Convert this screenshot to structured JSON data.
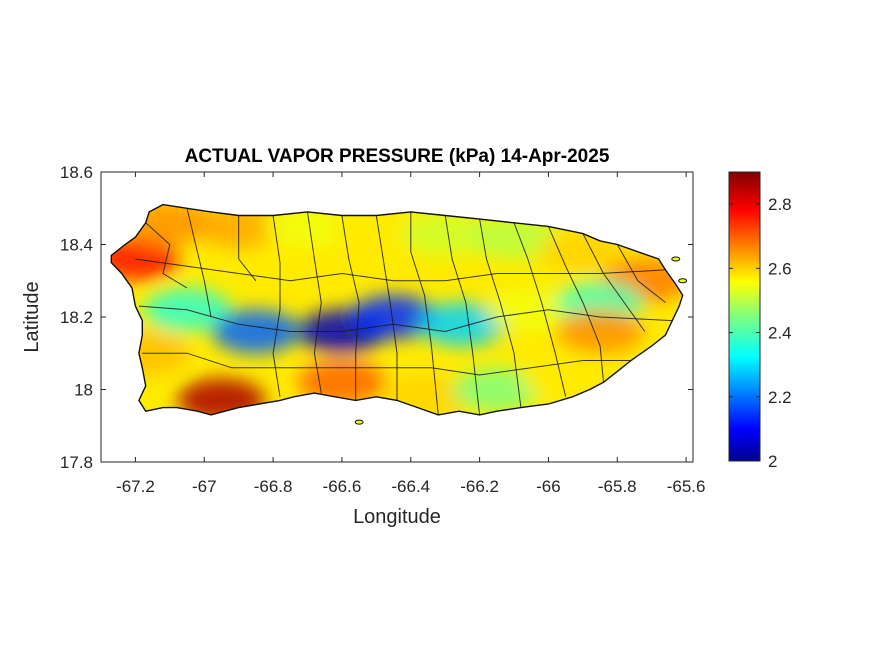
{
  "title": "ACTUAL VAPOR PRESSURE (kPa) 14-Apr-2025",
  "xlabel": "Longitude",
  "ylabel": "Latitude",
  "xlim": [
    -67.3,
    -65.58
  ],
  "ylim": [
    17.8,
    18.6
  ],
  "xticks": [
    {
      "value": -67.2,
      "label": "-67.2"
    },
    {
      "value": -67.0,
      "label": "-67"
    },
    {
      "value": -66.8,
      "label": "-66.8"
    },
    {
      "value": -66.6,
      "label": "-66.6"
    },
    {
      "value": -66.4,
      "label": "-66.4"
    },
    {
      "value": -66.2,
      "label": "-66.2"
    },
    {
      "value": -66.0,
      "label": "-66"
    },
    {
      "value": -65.8,
      "label": "-65.8"
    },
    {
      "value": -65.6,
      "label": "-65.6"
    }
  ],
  "yticks": [
    {
      "value": 17.8,
      "label": "17.8"
    },
    {
      "value": 18.0,
      "label": "18"
    },
    {
      "value": 18.2,
      "label": "18.2"
    },
    {
      "value": 18.4,
      "label": "18.4"
    },
    {
      "value": 18.6,
      "label": "18.6"
    }
  ],
  "colorbar": {
    "colormap": "jet",
    "range": [
      2.0,
      2.9
    ],
    "ticks": [
      {
        "value": 2.0,
        "label": "2"
      },
      {
        "value": 2.2,
        "label": "2.2"
      },
      {
        "value": 2.4,
        "label": "2.4"
      },
      {
        "value": 2.6,
        "label": "2.6"
      },
      {
        "value": 2.8,
        "label": "2.8"
      }
    ]
  },
  "chart_data": {
    "type": "heatmap",
    "title": "ACTUAL VAPOR PRESSURE (kPa) 14-Apr-2025",
    "xlabel": "Longitude",
    "ylabel": "Latitude",
    "units": "kPa",
    "xlim": [
      -67.3,
      -65.58
    ],
    "ylim": [
      17.8,
      18.6
    ],
    "zlim": [
      2.0,
      2.9
    ],
    "colormap": "jet",
    "grid": false,
    "field_samples": [
      {
        "lon": -67.2,
        "lat": 18.36,
        "value": 2.78
      },
      {
        "lon": -67.1,
        "lat": 18.46,
        "value": 2.66
      },
      {
        "lon": -66.9,
        "lat": 18.45,
        "value": 2.64
      },
      {
        "lon": -66.7,
        "lat": 18.45,
        "value": 2.55
      },
      {
        "lon": -66.5,
        "lat": 18.44,
        "value": 2.58
      },
      {
        "lon": -66.3,
        "lat": 18.43,
        "value": 2.52
      },
      {
        "lon": -66.1,
        "lat": 18.42,
        "value": 2.5
      },
      {
        "lon": -65.9,
        "lat": 18.38,
        "value": 2.6
      },
      {
        "lon": -65.72,
        "lat": 18.3,
        "value": 2.68
      },
      {
        "lon": -67.05,
        "lat": 18.22,
        "value": 2.38
      },
      {
        "lon": -66.85,
        "lat": 18.16,
        "value": 2.2
      },
      {
        "lon": -66.6,
        "lat": 18.16,
        "value": 2.05
      },
      {
        "lon": -66.45,
        "lat": 18.2,
        "value": 2.15
      },
      {
        "lon": -66.25,
        "lat": 18.18,
        "value": 2.3
      },
      {
        "lon": -66.05,
        "lat": 18.22,
        "value": 2.55
      },
      {
        "lon": -65.85,
        "lat": 18.24,
        "value": 2.4
      },
      {
        "lon": -65.85,
        "lat": 18.16,
        "value": 2.66
      },
      {
        "lon": -67.17,
        "lat": 18.1,
        "value": 2.62
      },
      {
        "lon": -66.95,
        "lat": 17.97,
        "value": 2.86
      },
      {
        "lon": -66.6,
        "lat": 18.02,
        "value": 2.7
      },
      {
        "lon": -66.35,
        "lat": 17.98,
        "value": 2.6
      },
      {
        "lon": -66.15,
        "lat": 18.0,
        "value": 2.45
      },
      {
        "lon": -65.95,
        "lat": 18.03,
        "value": 2.58
      }
    ]
  }
}
